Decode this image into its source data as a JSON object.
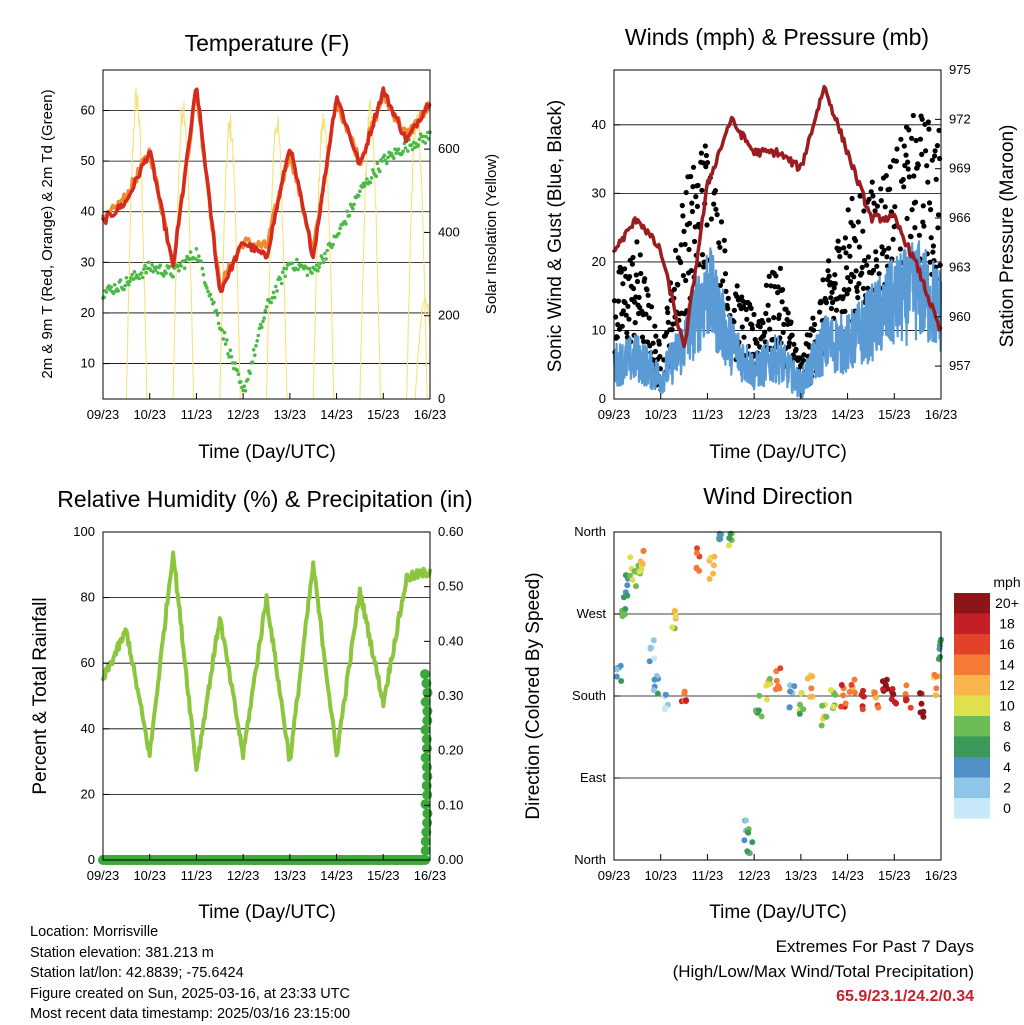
{
  "x_tick_labels": [
    "09/23",
    "10/23",
    "11/23",
    "12/23",
    "13/23",
    "14/23",
    "15/23",
    "16/23"
  ],
  "x_axis_label": "Time (Day/UTC)",
  "panels": {
    "temperature": {
      "title": "Temperature (F)",
      "left_label": "2m & 9m T (Red, Orange) & 2m Td (Green)",
      "right_label": "Solar Insolation (Yellow)",
      "left_ticks": [
        "10",
        "20",
        "30",
        "40",
        "50",
        "60"
      ],
      "right_ticks": [
        "0",
        "200",
        "400",
        "600"
      ]
    },
    "winds": {
      "title": "Winds (mph) & Pressure (mb)",
      "left_label": "Sonic Wind & Gust (Blue, Black)",
      "right_label": "Station Pressure (Maroon)",
      "left_ticks": [
        "0",
        "10",
        "20",
        "30",
        "40"
      ],
      "right_ticks": [
        "957",
        "960",
        "963",
        "966",
        "969",
        "972",
        "975"
      ]
    },
    "humidity": {
      "title": "Relative Humidity (%) & Precipitation (in)",
      "left_label": "Percent & Total Rainfall",
      "left_ticks": [
        "0",
        "20",
        "40",
        "60",
        "80",
        "100"
      ],
      "right_ticks": [
        "0.00",
        "0.10",
        "0.20",
        "0.30",
        "0.40",
        "0.50",
        "0.60"
      ]
    },
    "direction": {
      "title": "Wind Direction",
      "left_label": "Direction (Colored By Speed)",
      "dir_ticks": [
        "North",
        "East",
        "South",
        "West",
        "North"
      ],
      "legend_title": "mph",
      "legend_labels": [
        "0",
        "2",
        "4",
        "6",
        "8",
        "10",
        "12",
        "14",
        "16",
        "18",
        "20+"
      ],
      "legend_colors": [
        "#c6e8f8",
        "#8fc5e6",
        "#4f91c6",
        "#3b9a5a",
        "#6dbb55",
        "#e0e04c",
        "#f9b54b",
        "#f47a35",
        "#e0432a",
        "#c41f26",
        "#8b1519"
      ]
    }
  },
  "info": {
    "location": "Location: Morrisville",
    "elevation": "Station elevation: 381.213 m",
    "latlon": "Station lat/lon: 42.8839; -75.6424",
    "created": "Figure created on Sun, 2025-03-16, at 23:33 UTC",
    "recent": "Most recent data timestamp: 2025/03/16 23:15:00"
  },
  "extremes": {
    "line1": "Extremes For Past 7 Days",
    "line2": "(High/Low/Max Wind/Total Precipitation)",
    "values": "65.9/23.1/24.2/0.34"
  },
  "chart_data": [
    {
      "type": "line",
      "title": "Temperature (F)",
      "xlabel": "Time (Day/UTC)",
      "x": [
        0,
        0.5,
        1,
        1.5,
        2,
        2.5,
        3,
        3.5,
        4,
        4.5,
        5,
        5.5,
        6,
        6.5,
        7
      ],
      "ylim": [
        3,
        68
      ],
      "y2lim": [
        0,
        790
      ],
      "series": [
        {
          "name": "2m T (Red)",
          "color": "#d42a1f",
          "values": [
            38,
            42,
            52,
            29,
            65,
            24,
            34,
            31,
            53,
            31,
            63,
            49,
            64,
            54,
            62
          ]
        },
        {
          "name": "9m T (Orange)",
          "color": "#f28a30",
          "values": [
            38,
            43,
            52,
            30,
            64,
            25,
            34,
            33,
            52,
            32,
            62,
            50,
            63,
            55,
            61
          ]
        },
        {
          "name": "2m Td (Green)",
          "color": "#4cb848",
          "values": [
            24,
            26,
            29,
            28,
            32,
            18,
            4,
            21,
            30,
            28,
            35,
            44,
            50,
            53,
            55
          ]
        },
        {
          "name": "Solar Insolation (Yellow)",
          "axis": "right",
          "color": "#f6e27a",
          "peaks_w_m2": [
            760,
            740,
            690,
            700,
            700,
            720,
            720,
            250
          ]
        }
      ]
    },
    {
      "type": "line",
      "title": "Winds (mph) & Pressure (mb)",
      "xlabel": "Time (Day/UTC)",
      "x": [
        0,
        0.5,
        1,
        1.5,
        2,
        2.5,
        3,
        3.5,
        4,
        4.5,
        5,
        5.5,
        6,
        6.5,
        7
      ],
      "ylim": [
        0,
        48
      ],
      "y2lim": [
        955,
        975
      ],
      "series": [
        {
          "name": "Sonic Wind (Blue)",
          "color": "#5b9bd5",
          "values": [
            5,
            6,
            3,
            8,
            16,
            8,
            4,
            6,
            2,
            8,
            8,
            11,
            14,
            16,
            13
          ]
        },
        {
          "name": "Gust (Black)",
          "color": "#000000",
          "values": [
            12,
            16,
            4,
            22,
            28,
            12,
            8,
            14,
            3,
            12,
            20,
            22,
            26,
            30,
            28
          ]
        },
        {
          "name": "Station Pressure (Maroon)",
          "axis": "right",
          "color": "#9b1c20",
          "values": [
            964,
            966,
            964,
            958,
            968,
            972,
            970,
            970,
            969,
            974,
            970,
            966,
            966,
            963,
            959
          ]
        }
      ]
    },
    {
      "type": "line",
      "title": "Relative Humidity (%) & Precipitation (in)",
      "xlabel": "Time (Day/UTC)",
      "x": [
        0,
        0.5,
        1,
        1.5,
        2,
        2.5,
        3,
        3.5,
        4,
        4.5,
        5,
        5.5,
        6,
        6.5,
        7
      ],
      "ylim": [
        0,
        100
      ],
      "y2lim": [
        0,
        0.6
      ],
      "series": [
        {
          "name": "Relative Humidity",
          "color": "#8cc63f",
          "values": [
            55,
            70,
            32,
            94,
            28,
            74,
            32,
            80,
            30,
            90,
            32,
            82,
            48,
            86,
            88
          ]
        },
        {
          "name": "Total Rainfall",
          "axis": "right",
          "color": "#3aa83a",
          "values": [
            0,
            0,
            0,
            0,
            0,
            0,
            0,
            0,
            0,
            0,
            0,
            0,
            0,
            0,
            0.34
          ]
        }
      ]
    },
    {
      "type": "scatter",
      "title": "Wind Direction",
      "xlabel": "Time (Day/UTC)",
      "ylabel": "Direction (Colored By Speed)",
      "ylim": [
        0,
        360
      ],
      "points": [
        [
          0.1,
          200,
          4
        ],
        [
          0.2,
          280,
          8
        ],
        [
          0.3,
          300,
          6
        ],
        [
          0.4,
          320,
          10
        ],
        [
          0.5,
          310,
          8
        ],
        [
          0.6,
          330,
          12
        ],
        [
          0.8,
          230,
          2
        ],
        [
          0.9,
          190,
          4
        ],
        [
          1.1,
          170,
          2
        ],
        [
          1.3,
          260,
          10
        ],
        [
          1.5,
          180,
          16
        ],
        [
          1.8,
          330,
          14
        ],
        [
          2.1,
          320,
          12
        ],
        [
          2.3,
          355,
          6
        ],
        [
          2.5,
          350,
          8
        ],
        [
          2.8,
          30,
          4
        ],
        [
          2.9,
          20,
          6
        ],
        [
          3.1,
          170,
          6
        ],
        [
          3.3,
          190,
          10
        ],
        [
          3.5,
          200,
          14
        ],
        [
          3.8,
          180,
          4
        ],
        [
          4.0,
          170,
          8
        ],
        [
          4.2,
          190,
          12
        ],
        [
          4.5,
          160,
          10
        ],
        [
          4.7,
          175,
          8
        ],
        [
          4.9,
          180,
          16
        ],
        [
          5.1,
          190,
          14
        ],
        [
          5.3,
          175,
          18
        ],
        [
          5.6,
          180,
          14
        ],
        [
          5.8,
          185,
          20
        ],
        [
          6.0,
          175,
          18
        ],
        [
          6.3,
          180,
          16
        ],
        [
          6.6,
          170,
          20
        ],
        [
          6.9,
          190,
          12
        ],
        [
          7.0,
          230,
          6
        ]
      ]
    }
  ]
}
